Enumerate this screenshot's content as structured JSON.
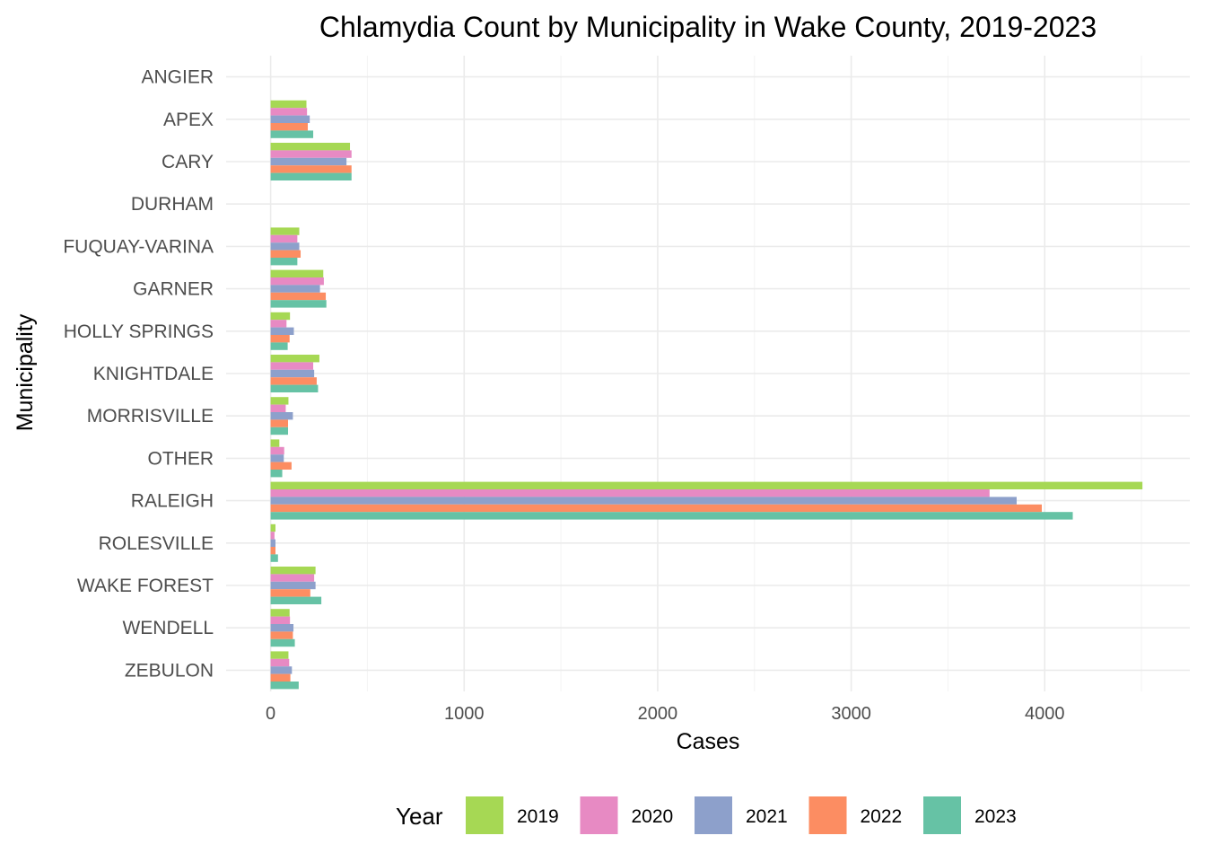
{
  "chart_data": {
    "type": "bar",
    "orientation": "horizontal",
    "title": "Chlamydia Count by Municipality in Wake County, 2019-2023",
    "xlabel": "Cases",
    "ylabel": "Municipality",
    "xlim": [
      -230,
      4750
    ],
    "xticks": [
      0,
      1000,
      2000,
      3000,
      4000
    ],
    "xtick_labels": [
      "0",
      "1000",
      "2000",
      "3000",
      "4000"
    ],
    "grid": true,
    "legend_position": "bottom",
    "legend_title": "Year",
    "categories": [
      "ANGIER",
      "APEX",
      "CARY",
      "DURHAM",
      "FUQUAY-VARINA",
      "GARNER",
      "HOLLY SPRINGS",
      "KNIGHTDALE",
      "MORRISVILLE",
      "OTHER",
      "RALEIGH",
      "ROLESVILLE",
      "WAKE FOREST",
      "WENDELL",
      "ZEBULON"
    ],
    "series": [
      {
        "name": "2019",
        "color": "#a6d854",
        "values": [
          0,
          185,
          410,
          0,
          148,
          272,
          100,
          252,
          92,
          45,
          4505,
          25,
          232,
          98,
          92
        ]
      },
      {
        "name": "2020",
        "color": "#e78ac3",
        "values": [
          0,
          188,
          418,
          0,
          138,
          275,
          82,
          220,
          78,
          70,
          3715,
          20,
          225,
          100,
          96
        ]
      },
      {
        "name": "2021",
        "color": "#8da0cb",
        "values": [
          0,
          202,
          392,
          0,
          148,
          255,
          120,
          225,
          115,
          68,
          3855,
          25,
          232,
          118,
          110
        ]
      },
      {
        "name": "2022",
        "color": "#fc8d62",
        "values": [
          0,
          192,
          418,
          0,
          155,
          285,
          98,
          238,
          90,
          108,
          3985,
          25,
          205,
          115,
          102
        ]
      },
      {
        "name": "2023",
        "color": "#66c2a5",
        "values": [
          0,
          220,
          418,
          0,
          138,
          288,
          88,
          245,
          90,
          60,
          4145,
          38,
          262,
          125,
          145
        ]
      }
    ]
  }
}
